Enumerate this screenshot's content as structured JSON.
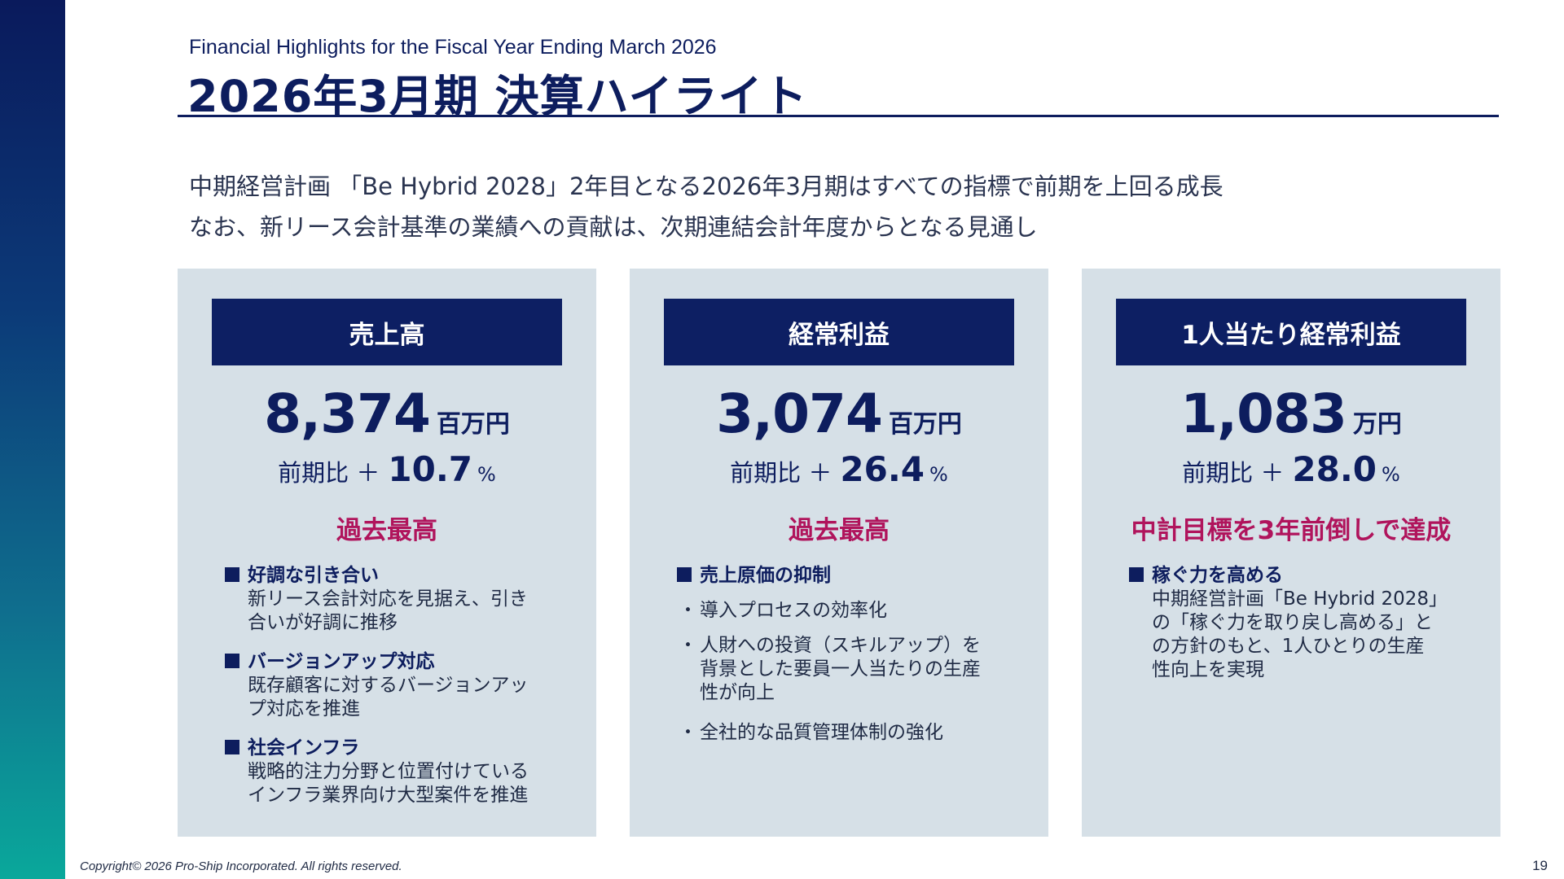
{
  "header": {
    "subtitle_en": "Financial Highlights for the Fiscal Year Ending March 2026",
    "title": "2026年3月期 決算ハイライト"
  },
  "intro": {
    "line1": "中期経営計画 「Be Hybrid 2028」2年目となる2026年3月期はすべての指標で前期を上回る成長",
    "line2": "なお、新リース会計基準の業績への貢献は、次期連結会計年度からとなる見通し"
  },
  "cards": [
    {
      "header": "売上高",
      "value": "8,374",
      "unit": "百万円",
      "yoy_label": "前期比 ＋",
      "yoy_value": "10.7",
      "yoy_unit": "%",
      "highlight": "過去最高",
      "items": [
        {
          "head": "好調な引き合い",
          "text": "新リース会計対応を見据え、引き\n合いが好調に推移"
        },
        {
          "head": "バージョンアップ対応",
          "text": "既存顧客に対するバージョンアッ\nプ対応を推進"
        },
        {
          "head": "社会インフラ",
          "text": "戦略的注力分野と位置付けている\nインフラ業界向け大型案件を推進"
        }
      ]
    },
    {
      "header": "経常利益",
      "value": "3,074",
      "unit": "百万円",
      "yoy_label": "前期比 ＋",
      "yoy_value": "26.4",
      "yoy_unit": "%",
      "highlight": "過去最高",
      "items_head": "売上原価の抑制",
      "points": [
        {
          "bullet": "・",
          "text": "導入プロセスの効率化"
        },
        {
          "bullet": "・",
          "text": "人財への投資（スキルアップ）を\n背景とした要員一人当たりの生産\n性が向上"
        },
        {
          "bullet": "・",
          "text": "全社的な品質管理体制の強化"
        }
      ]
    },
    {
      "header": "1人当たり経常利益",
      "value": "1,083",
      "unit": "万円",
      "yoy_label": "前期比 ＋",
      "yoy_value": "28.0",
      "yoy_unit": "%",
      "highlight": "中計目標を3年前倒しで達成",
      "items": [
        {
          "head": "稼ぐ力を高める",
          "text": "中期経営計画「Be Hybrid 2028」\nの「稼ぐ力を取り戻し高める」と\nの方針のもと、1人ひとりの生産\n性向上を実現"
        }
      ]
    }
  ],
  "footer": {
    "copyright": "Copyright© 2026 Pro-Ship Incorporated. All rights reserved.",
    "page_number": "19"
  },
  "colors": {
    "navy": "#0d1d5e",
    "card_header": "#0d1f63",
    "card_bg": "#d6e0e7",
    "highlight": "#b0145c"
  }
}
